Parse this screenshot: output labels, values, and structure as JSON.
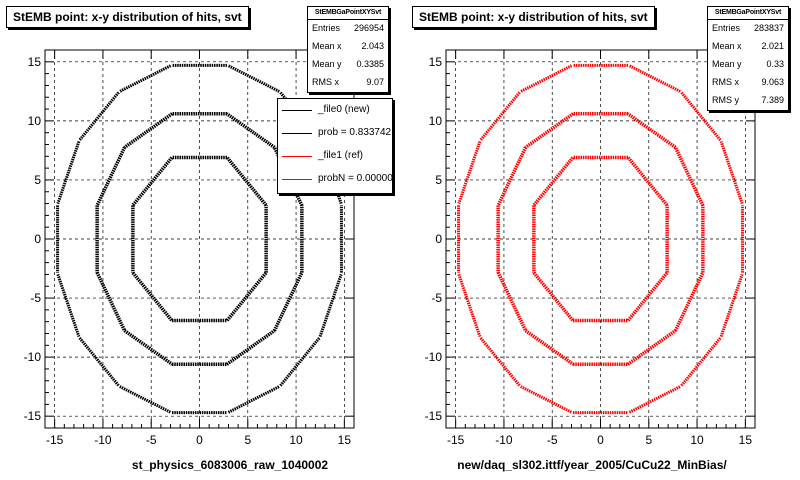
{
  "chart_data": [
    {
      "type": "scatter",
      "title": "StEMB point: x-y distribution of hits, svt",
      "xlabel": "st_physics_6083006_raw_1040002",
      "ylabel": "",
      "xlim": [
        -16,
        16
      ],
      "ylim": [
        -16,
        16
      ],
      "xticks": [
        "-15",
        "-10",
        "-5",
        "0",
        "5",
        "10",
        "15"
      ],
      "yticks": [
        "-15",
        "-10",
        "-5",
        "0",
        "5",
        "10",
        "15"
      ],
      "grid": true,
      "marker_color": "#000000",
      "stats": {
        "header": "StEMBGaPointXYSvt",
        "rows": [
          {
            "label": "Entries",
            "value": "296954"
          },
          {
            "label": "Mean x",
            "value": "2.043"
          },
          {
            "label": "Mean y",
            "value": "0.3385"
          },
          {
            "label": "RMS x",
            "value": "9.07"
          }
        ]
      },
      "legend": {
        "placement": "top-right",
        "entries": [
          {
            "label": "_file0 (new)",
            "color": "#000000"
          },
          {
            "label": "prob = 0.833742",
            "color": "#000000"
          },
          {
            "label": "_file1 (ref)",
            "color": "#ff0000"
          },
          {
            "label": "probN = 0.000000",
            "color": "#ff0000"
          }
        ]
      },
      "svt_layers": [
        {
          "radius": 6.9,
          "ladders": 8,
          "ladder_half_length": 2.85
        },
        {
          "radius": 10.6,
          "ladders": 12,
          "ladder_half_length": 2.85
        },
        {
          "radius": 14.7,
          "ladders": 16,
          "ladder_half_length": 2.85
        }
      ]
    },
    {
      "type": "scatter",
      "title": "StEMB point: x-y distribution of hits, svt",
      "xlabel": "new/daq_sl302.ittf/year_2005/CuCu22_MinBias/",
      "ylabel": "",
      "xlim": [
        -16,
        16
      ],
      "ylim": [
        -16,
        16
      ],
      "xticks": [
        "-15",
        "-10",
        "-5",
        "0",
        "5",
        "10",
        "15"
      ],
      "yticks": [
        "-15",
        "-10",
        "-5",
        "0",
        "5",
        "10",
        "15"
      ],
      "grid": true,
      "marker_color": "#ff0000",
      "stats": {
        "header": "StEMBGaPointXYSvt",
        "rows": [
          {
            "label": "Entries",
            "value": "283837"
          },
          {
            "label": "Mean x",
            "value": "2.021"
          },
          {
            "label": "Mean y",
            "value": "0.33"
          },
          {
            "label": "RMS x",
            "value": "9.063"
          },
          {
            "label": "RMS y",
            "value": "7.389"
          }
        ]
      },
      "svt_layers": [
        {
          "radius": 6.9,
          "ladders": 8,
          "ladder_half_length": 2.85
        },
        {
          "radius": 10.6,
          "ladders": 12,
          "ladder_half_length": 2.85
        },
        {
          "radius": 14.7,
          "ladders": 16,
          "ladder_half_length": 2.85
        }
      ]
    }
  ]
}
